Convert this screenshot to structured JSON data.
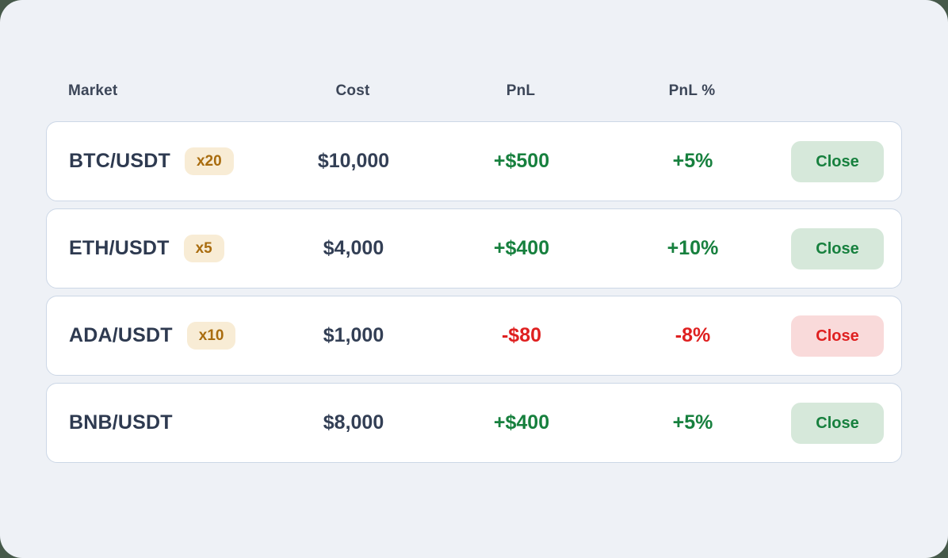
{
  "table": {
    "headers": {
      "market": "Market",
      "cost": "Cost",
      "pnl": "PnL",
      "pnl_pct": "PnL %"
    },
    "rows": [
      {
        "market": "BTC/USDT",
        "leverage": "x20",
        "cost": "$10,000",
        "pnl": "+$500",
        "pnl_pct": "+5%",
        "status": "profit",
        "close_label": "Close"
      },
      {
        "market": "ETH/USDT",
        "leverage": "x5",
        "cost": "$4,000",
        "pnl": "+$400",
        "pnl_pct": "+10%",
        "status": "profit",
        "close_label": "Close"
      },
      {
        "market": "ADA/USDT",
        "leverage": "x10",
        "cost": "$1,000",
        "pnl": "-$80",
        "pnl_pct": "-8%",
        "status": "loss",
        "close_label": "Close"
      },
      {
        "market": "BNB/USDT",
        "leverage": null,
        "cost": "$8,000",
        "pnl": "+$400",
        "pnl_pct": "+5%",
        "status": "profit",
        "close_label": "Close"
      }
    ]
  },
  "colors": {
    "backdrop": "#46594a",
    "panel_background": "#eef1f6",
    "card_background": "#ffffff",
    "card_border": "#ccd7e6",
    "header_text": "#3c4658",
    "primary_text": "#2e3a50",
    "profit_text": "#17803e",
    "loss_text": "#df2020",
    "close_profit_background": "#d6e8da",
    "close_loss_background": "#f9dada",
    "leverage_badge_background": "#f8ecd5",
    "leverage_badge_text": "#a96c0e"
  }
}
